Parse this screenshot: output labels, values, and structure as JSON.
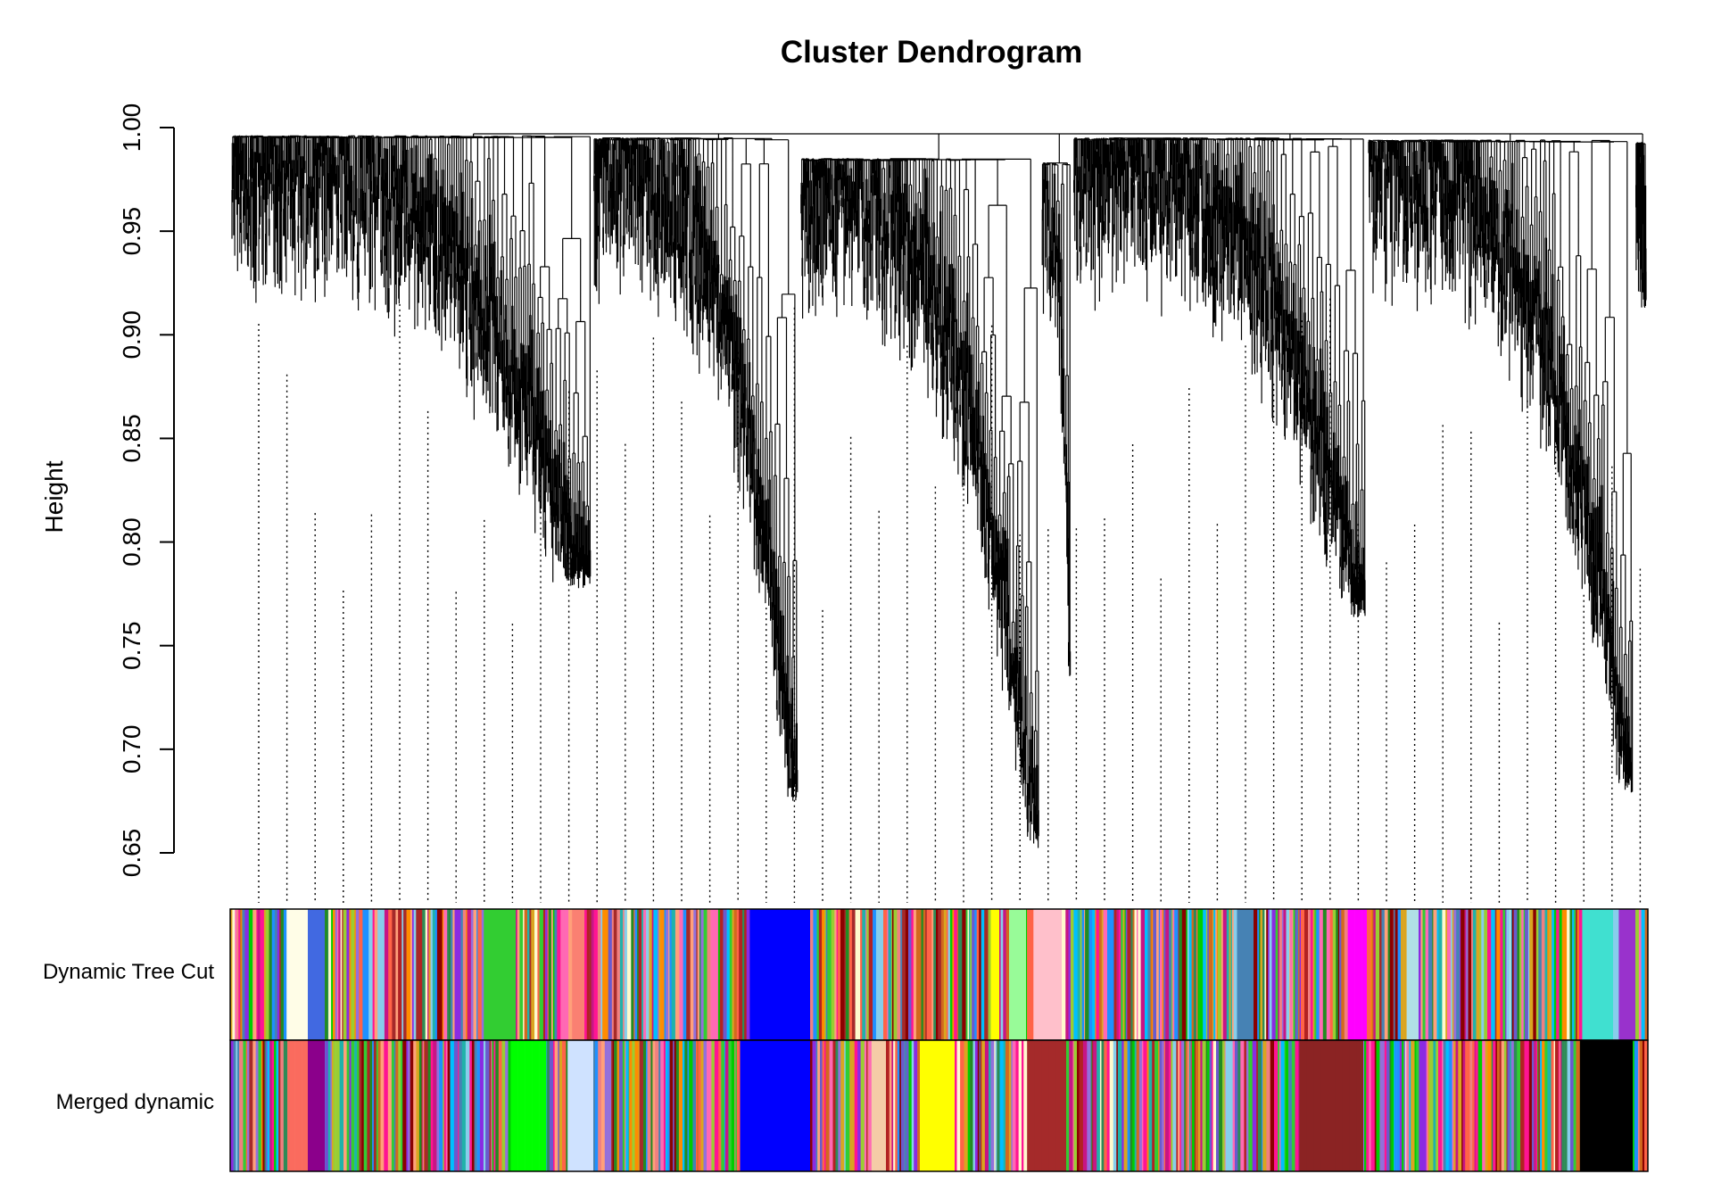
{
  "chart_data": {
    "type": "dendrogram",
    "title": "Cluster Dendrogram",
    "ylabel": "Height",
    "xlabel": "",
    "ylim": [
      0.65,
      1.0
    ],
    "yticks": [
      "0.65",
      "0.70",
      "0.75",
      "0.80",
      "0.85",
      "0.90",
      "0.95",
      "1.00"
    ],
    "ytick_values": [
      0.65,
      0.7,
      0.75,
      0.8,
      0.85,
      0.9,
      0.95,
      1.0
    ],
    "root_height": 0.997,
    "minimum_leaf_height": 0.652,
    "major_clusters": [
      {
        "merge_height": 0.996,
        "min_height": 0.777
      },
      {
        "merge_height": 0.995,
        "min_height": 0.674
      },
      {
        "merge_height": 0.985,
        "min_height": 0.652
      },
      {
        "merge_height": 0.983,
        "min_height": 0.735
      },
      {
        "merge_height": 0.995,
        "min_height": 0.763
      },
      {
        "merge_height": 0.994,
        "min_height": 0.679
      },
      {
        "merge_height": 0.993,
        "min_height": 0.912
      }
    ],
    "color_bands": [
      {
        "label": "Dynamic Tree Cut"
      },
      {
        "label": "Merged dynamic"
      }
    ],
    "legend": "none",
    "grid": false
  }
}
